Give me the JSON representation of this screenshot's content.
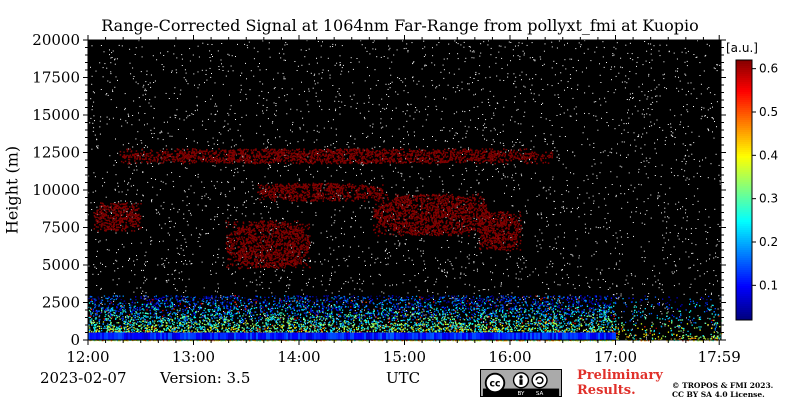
{
  "chart_data": {
    "type": "heatmap",
    "title": "Range-Corrected Signal at 1064nm Far-Range from pollyxt_fmi at Kuopio",
    "xlabel": "UTC",
    "ylabel": "Height (m)",
    "x_ticks": [
      "12:00",
      "13:00",
      "14:00",
      "15:00",
      "16:00",
      "17:00",
      "17:59"
    ],
    "x_tick_hours": [
      0,
      1,
      2,
      3,
      4,
      5,
      5.983
    ],
    "y_ticks": [
      0,
      2500,
      5000,
      7500,
      10000,
      12500,
      15000,
      17500,
      20000
    ],
    "ylim": [
      0,
      20000
    ],
    "colorbar": {
      "unit": "[a.u.]",
      "ticks": [
        0.1,
        0.2,
        0.3,
        0.4,
        0.5,
        0.6
      ],
      "range": [
        0.02,
        0.62
      ],
      "colormap": "jet"
    },
    "cloud_regions": [
      {
        "t0": 0.05,
        "t1": 0.5,
        "h0": 7300,
        "h1": 9200,
        "value": 0.62
      },
      {
        "t0": 1.3,
        "t1": 2.1,
        "h0": 4800,
        "h1": 8000,
        "value": 0.62
      },
      {
        "t0": 1.6,
        "t1": 2.8,
        "h0": 9300,
        "h1": 10500,
        "value": 0.62
      },
      {
        "t0": 2.7,
        "t1": 3.8,
        "h0": 7000,
        "h1": 9800,
        "value": 0.62
      },
      {
        "t0": 0.3,
        "t1": 4.4,
        "h0": 11800,
        "h1": 12800,
        "value": 0.62
      },
      {
        "t0": 3.7,
        "t1": 4.1,
        "h0": 6000,
        "h1": 8600,
        "value": 0.62
      }
    ],
    "boundary_layer": {
      "top_m": 3000,
      "peak_value": 0.3
    },
    "gaps_after_hour": 5.0
  },
  "footer": {
    "date": "2023-02-07",
    "version": "Version: 3.5",
    "preliminary": [
      "Preliminary",
      "Results."
    ],
    "license": [
      "© TROPOS & FMI 2023.",
      "CC BY SA 4.0 License."
    ],
    "cc_badge": [
      "cc",
      "BY",
      "SA"
    ]
  }
}
